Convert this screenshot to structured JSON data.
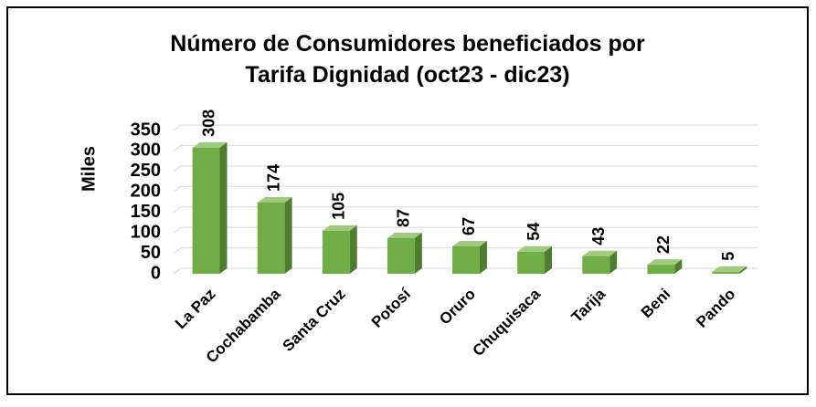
{
  "chart_data": {
    "type": "bar",
    "title": [
      "Número de Consumidores beneficiados por",
      "Tarifa Dignidad (oct23 - dic23)"
    ],
    "y_label": "Miles",
    "categories": [
      "La Paz",
      "Cochabamba",
      "Santa Cruz",
      "Potosí",
      "Oruro",
      "Chuquisaca",
      "Tarija",
      "Beni",
      "Pando"
    ],
    "values": [
      308,
      174,
      105,
      87,
      67,
      54,
      43,
      22,
      5
    ],
    "color": "#70ad47",
    "ylim": [
      0,
      350
    ],
    "yticks": [
      0,
      50,
      100,
      150,
      200,
      250,
      300,
      350
    ],
    "grid": true
  }
}
